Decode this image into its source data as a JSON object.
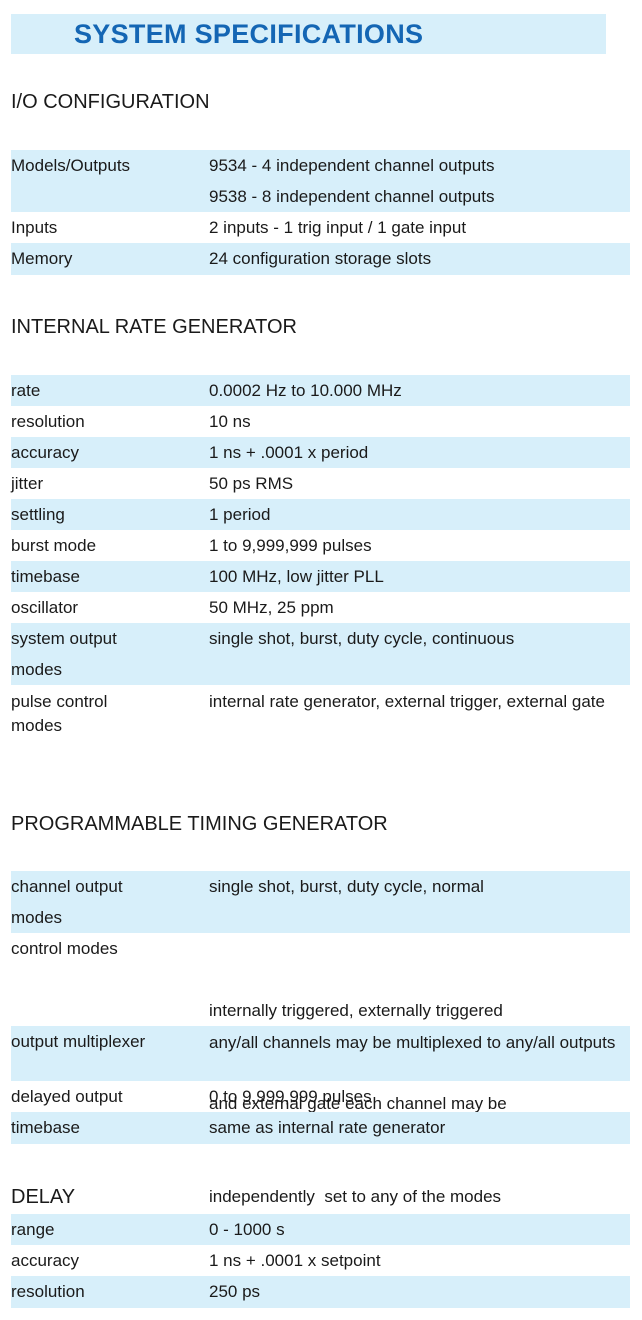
{
  "title": "SYSTEM SPECIFICATIONS",
  "sections": [
    {
      "heading": "I/O CONFIGURATION",
      "rows": [
        {
          "label": "Models/Outputs",
          "values": [
            "9534 - 4 independent channel outputs",
            "9538 - 8 independent channel outputs"
          ]
        },
        {
          "label": "Inputs",
          "values": [
            "2 inputs - 1 trig input / 1 gate input"
          ]
        },
        {
          "label": "Memory",
          "values": [
            "24 configuration storage slots"
          ]
        }
      ]
    },
    {
      "heading": "INTERNAL RATE GENERATOR",
      "rows": [
        {
          "label": "rate",
          "values": [
            "0.0002 Hz to 10.000 MHz"
          ]
        },
        {
          "label": "resolution",
          "values": [
            "10 ns"
          ]
        },
        {
          "label": "accuracy",
          "values": [
            "1 ns + .0001 x period"
          ]
        },
        {
          "label": "jitter",
          "values": [
            "50 ps RMS"
          ]
        },
        {
          "label": "settling",
          "values": [
            "1 period"
          ]
        },
        {
          "label": "burst mode",
          "values": [
            "1 to 9,999,999 pulses"
          ]
        },
        {
          "label": "timebase",
          "values": [
            "100 MHz, low jitter PLL"
          ]
        },
        {
          "label": "oscillator",
          "values": [
            "50 MHz, 25 ppm"
          ]
        },
        {
          "label": "system output modes",
          "values": [
            "single shot, burst, duty cycle, continuous"
          ]
        },
        {
          "label": "pulse control modes",
          "values": [
            "internal rate generator, external trigger, external gate"
          ]
        }
      ]
    },
    {
      "heading": "PROGRAMMABLE TIMING GENERATOR",
      "rows": [
        {
          "label": "channel output modes",
          "values": [
            "single shot, burst, duty cycle, normal"
          ]
        },
        {
          "label": "control modes",
          "values": [
            "internally triggered, externally triggered",
            "and external gate each channel may be",
            "independently  set to any of the modes"
          ]
        },
        {
          "label": "output multiplexer",
          "values": [
            "any/all channels may be multiplexed to any/all outputs"
          ]
        },
        {
          "label": "delayed output",
          "values": [
            "0 to 9,999,999 pulses"
          ]
        },
        {
          "label": "timebase",
          "values": [
            "same as internal rate generator"
          ]
        }
      ]
    },
    {
      "heading": "DELAY",
      "rows": [
        {
          "label": "range",
          "values": [
            "0 - 1000 s"
          ]
        },
        {
          "label": "accuracy",
          "values": [
            "1 ns + .0001 x setpoint"
          ]
        },
        {
          "label": "resolution",
          "values": [
            "250 ps"
          ]
        }
      ]
    }
  ]
}
